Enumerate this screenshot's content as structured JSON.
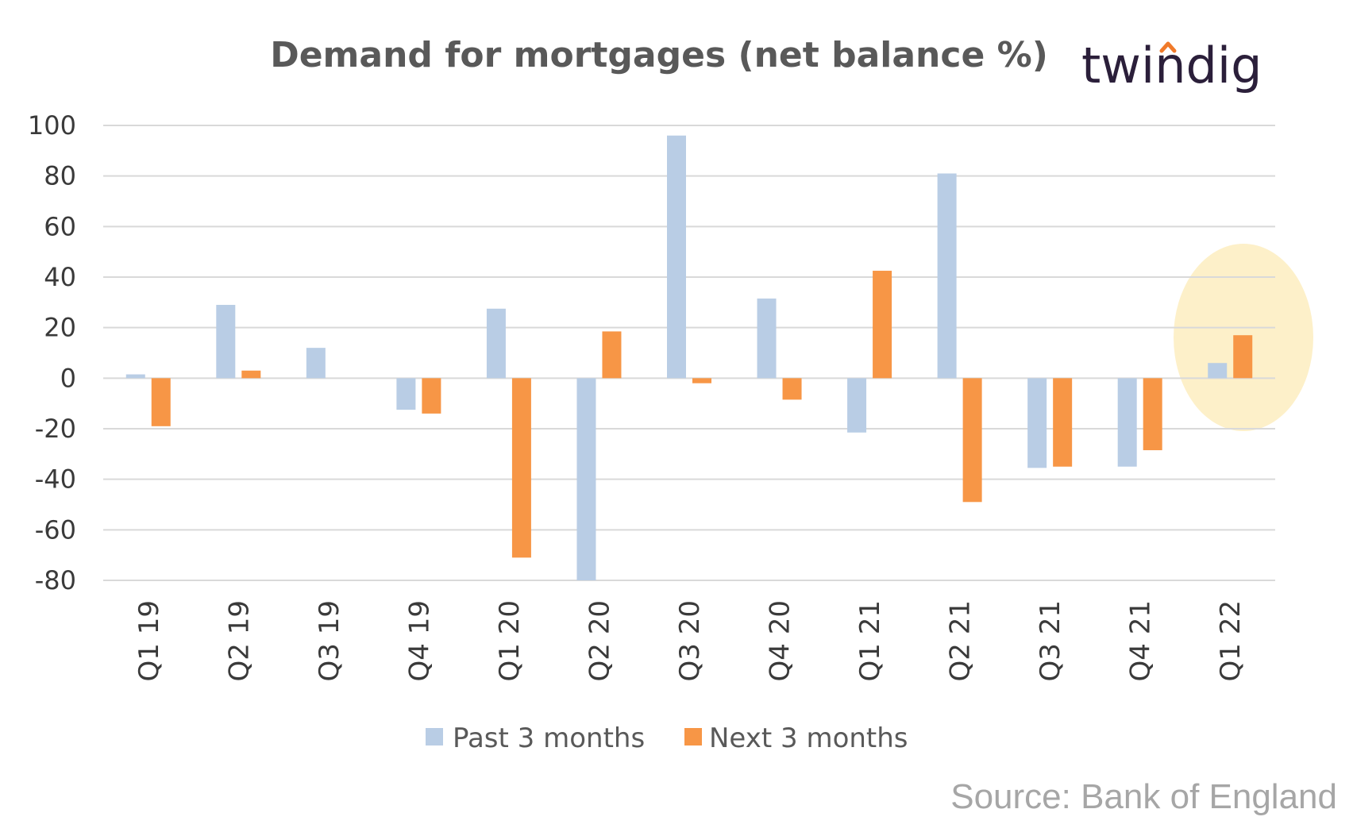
{
  "chart_data": {
    "type": "bar",
    "title": "Demand for mortgages (net balance %)",
    "categories": [
      "Q1 19",
      "Q2 19",
      "Q3 19",
      "Q4 19",
      "Q1 20",
      "Q2 20",
      "Q3 20",
      "Q4 20",
      "Q1 21",
      "Q2 21",
      "Q3 21",
      "Q4 21",
      "Q1 22"
    ],
    "series": [
      {
        "name": "Past 3 months",
        "color": "#b9cde5",
        "values": [
          1.5,
          29,
          12,
          -12.5,
          27.5,
          -80,
          96,
          31.5,
          -21.5,
          81,
          -35.5,
          -35,
          6
        ]
      },
      {
        "name": "Next 3 months",
        "color": "#f79646",
        "values": [
          -19,
          3,
          0,
          -14,
          -71,
          18.5,
          -2,
          -8.5,
          42.5,
          -49,
          -35,
          -28.5,
          17
        ]
      }
    ],
    "ylim": [
      -80,
      100
    ],
    "yticks": [
      "100",
      "80",
      "60",
      "40",
      "20",
      "0",
      "-20",
      "-40",
      "-60",
      "-80"
    ],
    "xlabel": "",
    "ylabel": "",
    "grid": true,
    "legend_position": "bottom",
    "highlight": {
      "category": "Q1 22",
      "color": "#fdf0c9"
    }
  },
  "brand": {
    "name": "twindig",
    "color": "#2b1f3a",
    "accent_color": "#f07a2a"
  },
  "source_text": "Source: Bank of England"
}
